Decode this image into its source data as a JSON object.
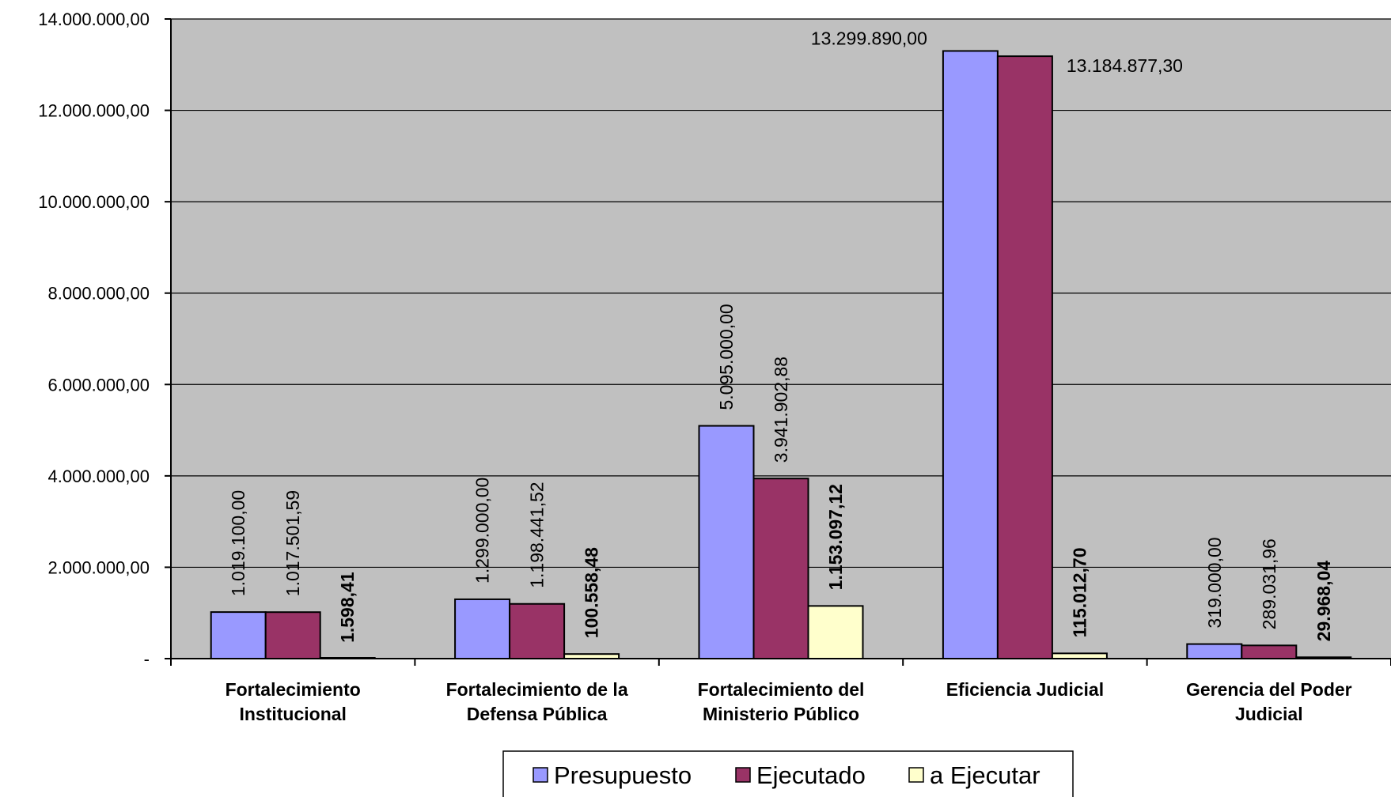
{
  "chart_data": {
    "type": "bar",
    "categories": [
      [
        "Fortalecimiento",
        "Institucional"
      ],
      [
        "Fortalecimiento de la",
        "Defensa Pública"
      ],
      [
        "Fortalecimiento del",
        "Ministerio Público"
      ],
      [
        "Eficiencia Judicial"
      ],
      [
        "Gerencia del Poder",
        "Judicial"
      ]
    ],
    "series": [
      {
        "name": "Presupuesto",
        "color": "#9999ff",
        "values": [
          1019100.0,
          1299000.0,
          5095000.0,
          13299890.0,
          319000.0
        ],
        "labels": [
          "1.019.100,00",
          "1.299.000,00",
          "5.095.000,00",
          "13.299.890,00",
          "319.000,00"
        ],
        "label_bold": false
      },
      {
        "name": "Ejecutado",
        "color": "#993366",
        "values": [
          1017501.59,
          1198441.52,
          3941902.88,
          13184877.3,
          289031.96
        ],
        "labels": [
          "1.017.501,59",
          "1.198.441,52",
          "3.941.902,88",
          "13.184.877,30",
          "289.031,96"
        ],
        "label_bold": false
      },
      {
        "name": "a Ejecutar",
        "color": "#ffffcc",
        "values": [
          1598.41,
          100558.48,
          1153097.12,
          115012.7,
          29968.04
        ],
        "labels": [
          "1.598,41",
          "100.558,48",
          "1.153.097,12",
          "115.012,70",
          "29.968,04"
        ],
        "label_bold": true
      }
    ],
    "ylim": [
      0,
      14000000
    ],
    "yticks": [
      0,
      2000000,
      4000000,
      6000000,
      8000000,
      10000000,
      12000000,
      14000000
    ],
    "ytick_labels": [
      "-",
      "2.000.000,00",
      "4.000.000,00",
      "6.000.000,00",
      "8.000.000,00",
      "10.000.000,00",
      "12.000.000,00",
      "14.000.000,00"
    ],
    "grid": true,
    "legend_position": "bottom-center",
    "plot_background": "#c0c0c0",
    "title": "",
    "xlabel": "",
    "ylabel": ""
  }
}
